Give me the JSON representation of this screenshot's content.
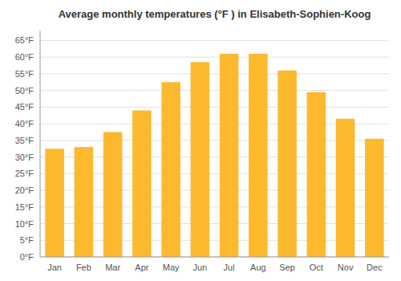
{
  "chart_data": {
    "type": "bar",
    "title": "Average monthly temperatures (°F ) in Elisabeth-Sophien-Koog",
    "categories": [
      "Jan",
      "Feb",
      "Mar",
      "Apr",
      "May",
      "Jun",
      "Jul",
      "Aug",
      "Sep",
      "Oct",
      "Nov",
      "Dec"
    ],
    "values": [
      32.5,
      33.0,
      37.5,
      44.0,
      52.5,
      58.5,
      61.0,
      61.0,
      56.0,
      49.5,
      41.5,
      35.5
    ],
    "color": "#FDB92E",
    "ylim": [
      0,
      68
    ],
    "yticks": [
      {
        "value": 0,
        "label": "0°F"
      },
      {
        "value": 5,
        "label": "5°F"
      },
      {
        "value": 10,
        "label": "10°F"
      },
      {
        "value": 15,
        "label": "15°F"
      },
      {
        "value": 20,
        "label": "20°F"
      },
      {
        "value": 25,
        "label": "25°F"
      },
      {
        "value": 30,
        "label": "30°F"
      },
      {
        "value": 35,
        "label": "35°F"
      },
      {
        "value": 40,
        "label": "40°F"
      },
      {
        "value": 45,
        "label": "45°F"
      },
      {
        "value": 50,
        "label": "50°F"
      },
      {
        "value": 55,
        "label": "55°F"
      },
      {
        "value": 60,
        "label": "60°F"
      },
      {
        "value": 65,
        "label": "65°F"
      }
    ],
    "grid": true
  }
}
